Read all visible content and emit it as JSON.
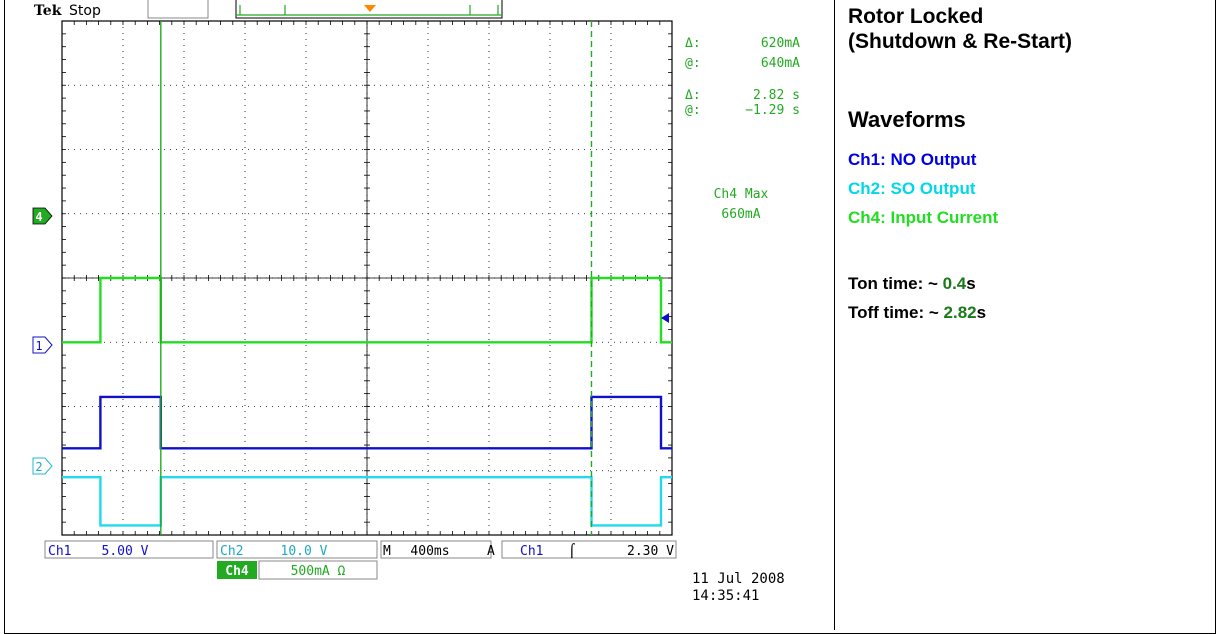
{
  "scope": {
    "brand": "Tek",
    "run_state": "Stop",
    "cursor_readout": {
      "amp_delta": "620mA",
      "amp_at": "640mA",
      "time_delta": "2.82 s",
      "time_at": "−1.29 s",
      "delta_symbol": "Δ:",
      "at_symbol": "@:"
    },
    "measurement": {
      "label": "Ch4 Max",
      "value": "660mA"
    },
    "markers": {
      "ch4": "4",
      "ch1": "1",
      "ch2": "2"
    },
    "settings": {
      "ch1": {
        "label": "Ch1",
        "value": "5.00 V"
      },
      "ch2": {
        "label": "Ch2",
        "value": "10.0 V"
      },
      "ch4": {
        "label": "Ch4",
        "value": "500mA Ω"
      },
      "timebase": {
        "label": "M",
        "value": "400ms"
      },
      "trigger": {
        "mode": "A",
        "source": "Ch1",
        "slope": "⌠",
        "level": "2.30 V"
      }
    },
    "date": "11 Jul  2008",
    "time": "14:35:41"
  },
  "side_panel": {
    "title_line1": "Rotor Locked",
    "title_line2": "(Shutdown & Re-Start)",
    "waveforms_heading": "Waveforms",
    "legend": [
      {
        "text": "Ch1: NO Output",
        "color": "#0000e0"
      },
      {
        "text": "Ch2: SO Output",
        "color": "#00d8e8"
      },
      {
        "text": "Ch4: Input Current",
        "color": "#22dd22"
      }
    ],
    "ton_label": "Ton time: ~ ",
    "ton_value": "0.4",
    "ton_unit": "s",
    "toff_label": "Toff time: ~ ",
    "toff_value": "2.82",
    "toff_unit": "s"
  },
  "colors": {
    "ch1": "#1010c8",
    "ch2": "#20d8f0",
    "ch4": "#22dd22",
    "trigger_marker": "#ff8800",
    "grid": "#000000"
  },
  "chart_data": {
    "type": "line",
    "title": "",
    "xlabel": "",
    "ylabel": "",
    "x_unit": "ms",
    "time_per_div_ms": 400,
    "xlim": [
      -2000,
      2000
    ],
    "ylim_div": [
      -4,
      4
    ],
    "series": [
      {
        "name": "Ch4: Input Current",
        "color": "#22dd22",
        "points": [
          [
            -2000,
            -1.0
          ],
          [
            -1748,
            -1.0
          ],
          [
            -1748,
            0.0
          ],
          [
            -1352,
            0.0
          ],
          [
            -1352,
            -1.0
          ],
          [
            1472,
            -1.0
          ],
          [
            1472,
            0.0
          ],
          [
            1928,
            0.0
          ],
          [
            1928,
            -1.0
          ],
          [
            2000,
            -1.0
          ]
        ]
      },
      {
        "name": "Ch1: NO Output",
        "color": "#1010c8",
        "points": [
          [
            -2000,
            -2.65
          ],
          [
            -1748,
            -2.65
          ],
          [
            -1748,
            -1.85
          ],
          [
            -1352,
            -1.85
          ],
          [
            -1352,
            -2.65
          ],
          [
            1472,
            -2.65
          ],
          [
            1472,
            -1.85
          ],
          [
            1928,
            -1.85
          ],
          [
            1928,
            -2.65
          ],
          [
            2000,
            -2.65
          ]
        ]
      },
      {
        "name": "Ch2: SO Output",
        "color": "#20d8f0",
        "points": [
          [
            -2000,
            -3.1
          ],
          [
            -1748,
            -3.1
          ],
          [
            -1748,
            -3.85
          ],
          [
            -1352,
            -3.85
          ],
          [
            -1352,
            -3.1
          ],
          [
            1472,
            -3.1
          ],
          [
            1472,
            -3.85
          ],
          [
            1928,
            -3.85
          ],
          [
            1928,
            -3.1
          ],
          [
            2000,
            -3.1
          ]
        ]
      }
    ],
    "cursors": {
      "time_solid_ms": -1352,
      "time_dashed_ms": 1472,
      "delta_t": "2.82 s"
    },
    "grid": true
  }
}
